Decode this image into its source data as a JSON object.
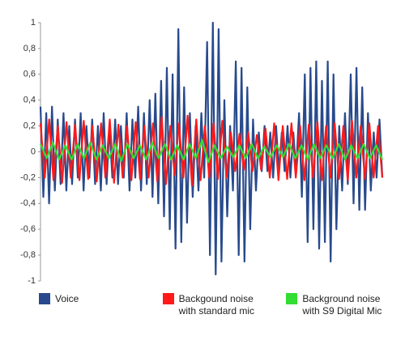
{
  "chart_data": {
    "type": "waveform",
    "ylim": [
      -1,
      1
    ],
    "yticks": [
      -1,
      {
        "value": -0.8,
        "label": "-0,8"
      },
      {
        "value": -0.6,
        "label": "-0,6"
      },
      {
        "value": -0.4,
        "label": "-0,4"
      },
      {
        "value": -0.2,
        "label": "-0,2"
      },
      0,
      {
        "value": 0.2,
        "label": "0,2"
      },
      {
        "value": 0.4,
        "label": "0,4"
      },
      {
        "value": 0.6,
        "label": "0,6"
      },
      {
        "value": 0.8,
        "label": "0,8"
      },
      1
    ],
    "series": [
      {
        "name": "Voice",
        "color": "#284a8c",
        "values": [
          0.35,
          -0.35,
          0.3,
          -0.4,
          0.35,
          -0.3,
          0.25,
          -0.25,
          0.3,
          -0.3,
          0.2,
          -0.25,
          0.25,
          -0.2,
          0.3,
          -0.3,
          0.2,
          -0.2,
          0.25,
          -0.25,
          0.2,
          -0.3,
          0.3,
          -0.25,
          0.2,
          -0.2,
          0.25,
          -0.25,
          0.2,
          -0.2,
          0.3,
          -0.3,
          0.25,
          -0.2,
          0.35,
          -0.3,
          0.3,
          -0.25,
          0.4,
          -0.35,
          0.45,
          -0.4,
          0.55,
          -0.5,
          0.65,
          -0.6,
          0.6,
          -0.75,
          0.95,
          -0.7,
          0.5,
          -0.55,
          0.3,
          -0.35,
          0.2,
          -0.3,
          0.3,
          -0.2,
          0.85,
          -0.8,
          1.0,
          -0.95,
          0.95,
          -0.85,
          0.4,
          -0.5,
          0.2,
          -0.3,
          0.7,
          -0.8,
          0.65,
          -0.85,
          0.5,
          -0.6,
          0.25,
          -0.3,
          0.15,
          -0.15,
          0.2,
          -0.15,
          0.15,
          -0.2,
          0.2,
          -0.15,
          0.15,
          -0.15,
          0.2,
          -0.2,
          0.15,
          -0.15,
          0.3,
          -0.35,
          0.6,
          -0.7,
          0.65,
          -0.6,
          0.7,
          -0.75,
          0.55,
          -0.7,
          0.7,
          -0.85,
          0.6,
          -0.6,
          0.2,
          -0.3,
          0.3,
          -0.25,
          0.6,
          -0.4,
          0.65,
          -0.45,
          0.5,
          -0.45,
          0.3,
          -0.3,
          0.15,
          -0.2,
          0.25,
          -0.2
        ]
      },
      {
        "name": "Backgound noise with standard mic",
        "color": "#ff1a1a",
        "values": [
          0.22,
          -0.2,
          0.25,
          -0.22,
          0.2,
          -0.24,
          0.23,
          -0.2,
          0.21,
          -0.22,
          0.24,
          -0.21,
          0.2,
          -0.23,
          0.22,
          -0.2,
          0.25,
          -0.24,
          0.21,
          -0.2,
          0.2,
          -0.22,
          0.23,
          -0.21,
          0.2,
          -0.2,
          0.22,
          -0.23,
          0.27,
          -0.25,
          0.2,
          -0.18,
          0.22,
          -0.2,
          0.28,
          -0.26,
          0.25,
          -0.22,
          0.2,
          -0.2,
          0.22,
          -0.21,
          0.24,
          -0.2,
          0.15,
          -0.15,
          0.14,
          -0.14,
          0.15,
          -0.15,
          0.13,
          -0.14,
          0.18,
          -0.2,
          0.22,
          -0.22,
          0.2,
          -0.21,
          0.22,
          -0.2,
          0.2,
          -0.22,
          0.21,
          -0.2,
          0.23,
          -0.22,
          0.2,
          -0.2,
          0.22,
          -0.21,
          0.2,
          -0.22,
          0.24,
          -0.2,
          0.2,
          -0.21,
          0.22,
          -0.2,
          0.2,
          -0.2
        ]
      },
      {
        "name": "Background noise with S9 Digital Mic",
        "color": "#33dd33",
        "values": [
          0.06,
          -0.05,
          0.07,
          -0.06,
          0.05,
          -0.06,
          0.06,
          -0.05,
          0.07,
          -0.06,
          0.05,
          -0.05,
          0.06,
          -0.07,
          0.06,
          -0.05,
          0.05,
          -0.06,
          0.07,
          -0.05,
          0.06,
          -0.06,
          0.05,
          -0.06,
          0.06,
          -0.05,
          0.09,
          -0.08,
          0.05,
          -0.05,
          0.04,
          -0.04,
          0.05,
          -0.05,
          0.06,
          -0.05,
          0.04,
          -0.04,
          0.05,
          -0.04,
          0.06,
          -0.05,
          0.05,
          -0.06,
          0.06,
          -0.05,
          0.05,
          -0.05,
          0.06,
          -0.06,
          0.05,
          -0.05,
          0.06,
          -0.05,
          0.05,
          -0.06
        ]
      }
    ]
  }
}
